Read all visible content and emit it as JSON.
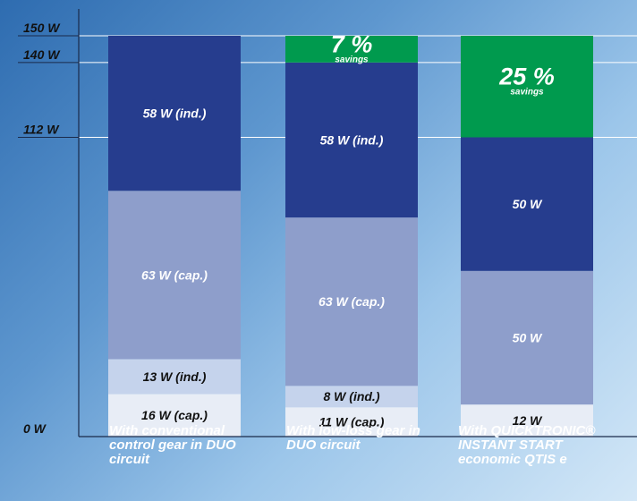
{
  "chart_data": {
    "type": "bar",
    "stacked": true,
    "ylim": [
      0,
      150
    ],
    "y_ticks": [
      {
        "value": 150,
        "label": "150 W"
      },
      {
        "value": 140,
        "label": "140 W"
      },
      {
        "value": 112,
        "label": "112 W"
      },
      {
        "value": 0,
        "label": "0 W"
      }
    ],
    "categories": [
      "With conventional control gear in DUO circuit",
      "With low-loss gear in DUO circuit",
      "With QUICKTRONIC® INSTANT START economic QTIS e"
    ],
    "bars": [
      {
        "segments": [
          {
            "value": 16,
            "label": "16 W (cap.)",
            "color": "#e8edf6",
            "text_color": "#111111"
          },
          {
            "value": 13,
            "label": "13 W (ind.)",
            "color": "#c5d3ec",
            "text_color": "#111111"
          },
          {
            "value": 63,
            "label": "63 W (cap.)",
            "color": "#8e9ecb",
            "text_color": "#ffffff"
          },
          {
            "value": 58,
            "label": "58 W (ind.)",
            "color": "#263d8e",
            "text_color": "#ffffff"
          }
        ],
        "savings": null
      },
      {
        "segments": [
          {
            "value": 11,
            "label": "11 W (cap.)",
            "color": "#e8edf6",
            "text_color": "#111111"
          },
          {
            "value": 8,
            "label": "8 W (ind.)",
            "color": "#c5d3ec",
            "text_color": "#111111"
          },
          {
            "value": 63,
            "label": "63 W (cap.)",
            "color": "#8e9ecb",
            "text_color": "#ffffff"
          },
          {
            "value": 58,
            "label": "58 W (ind.)",
            "color": "#263d8e",
            "text_color": "#ffffff"
          }
        ],
        "savings": {
          "value": 10,
          "percent": "7 %",
          "label": "savings",
          "color": "#009a4e"
        }
      },
      {
        "segments": [
          {
            "value": 12,
            "label": "12 W",
            "color": "#e8edf6",
            "text_color": "#111111"
          },
          {
            "value": 50,
            "label": "50 W",
            "color": "#8e9ecb",
            "text_color": "#ffffff"
          },
          {
            "value": 50,
            "label": "50 W",
            "color": "#263d8e",
            "text_color": "#ffffff"
          }
        ],
        "savings": {
          "value": 38,
          "percent": "25 %",
          "label": "savings",
          "color": "#009a4e"
        }
      }
    ]
  },
  "category_labels": [
    "With conventional control gear in DUO circuit",
    "With low-loss gear in DUO circuit",
    "With QUICKTRONIC® INSTANT START economic QTIS e"
  ]
}
